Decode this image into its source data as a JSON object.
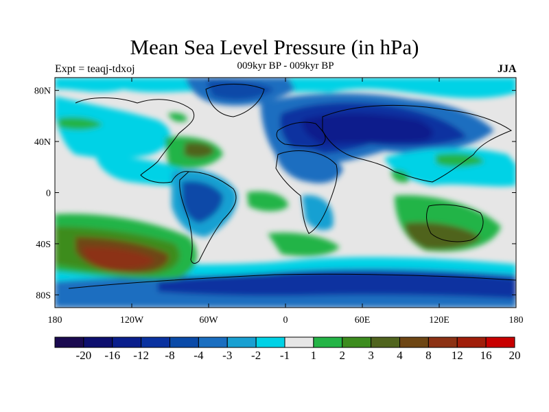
{
  "title": "Mean Sea Level Pressure (in hPa)",
  "subtitle": "009kyr BP - 009kyr BP",
  "experiment": "Expt = teaqj-tdxoj",
  "season": "JJA",
  "map": {
    "projection": "equirectangular",
    "lon_range": [
      -180,
      180
    ],
    "lat_range": [
      -90,
      90
    ],
    "x_ticks": [
      "180",
      "120W",
      "60W",
      "0",
      "60E",
      "120E",
      "180"
    ],
    "y_ticks": [
      "80N",
      "40N",
      "0",
      "40S",
      "80S"
    ],
    "background_level_color": "#e6e6e6"
  },
  "colorbar": {
    "labels": [
      "-20",
      "-16",
      "-12",
      "-8",
      "-4",
      "-3",
      "-2",
      "-1",
      "1",
      "2",
      "3",
      "4",
      "8",
      "12",
      "16",
      "20"
    ],
    "colors": [
      "#1a0a50",
      "#0d0f6e",
      "#0a1e8c",
      "#0a32a0",
      "#0a4aa8",
      "#1a6ec0",
      "#19a0d2",
      "#00d2e6",
      "#e6e6e6",
      "#24b446",
      "#3c8c1e",
      "#50641e",
      "#6e4614",
      "#8c3214",
      "#a01e0a",
      "#c80000"
    ]
  }
}
